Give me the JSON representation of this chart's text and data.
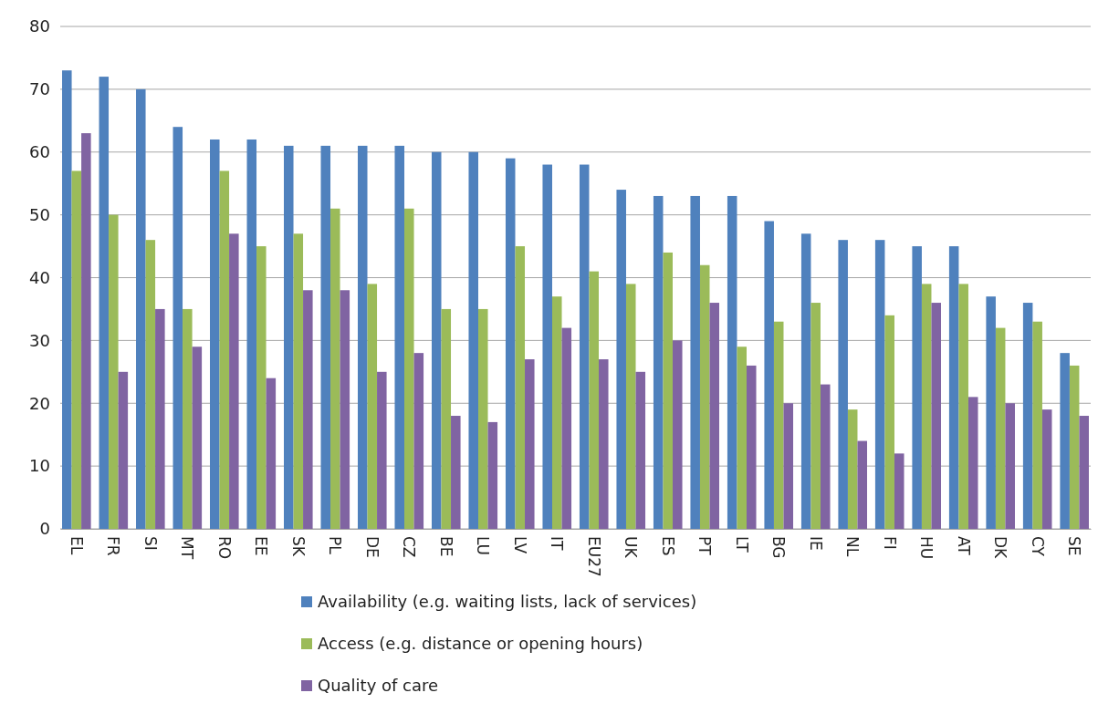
{
  "chart_data": {
    "type": "bar",
    "categories": [
      "EL",
      "FR",
      "SI",
      "MT",
      "RO",
      "EE",
      "SK",
      "PL",
      "DE",
      "CZ",
      "BE",
      "LU",
      "LV",
      "IT",
      "EU27",
      "UK",
      "ES",
      "PT",
      "LT",
      "BG",
      "IE",
      "NL",
      "FI",
      "HU",
      "AT",
      "DK",
      "CY",
      "SE"
    ],
    "series": [
      {
        "name": "Availability (e.g. waiting lists, lack of services)",
        "color": "#4f81bd",
        "values": [
          73,
          72,
          70,
          64,
          62,
          62,
          61,
          61,
          61,
          61,
          60,
          60,
          59,
          58,
          58,
          54,
          53,
          53,
          53,
          49,
          47,
          46,
          46,
          45,
          45,
          37,
          36,
          28
        ]
      },
      {
        "name": "Access (e.g. distance or opening hours)",
        "color": "#9bbb59",
        "values": [
          57,
          50,
          46,
          35,
          57,
          45,
          47,
          51,
          39,
          51,
          35,
          35,
          45,
          37,
          41,
          39,
          44,
          42,
          29,
          33,
          36,
          19,
          34,
          39,
          39,
          32,
          33,
          26
        ]
      },
      {
        "name": "Quality of care",
        "color": "#8064a2",
        "values": [
          63,
          25,
          35,
          29,
          47,
          24,
          38,
          38,
          25,
          28,
          18,
          17,
          27,
          32,
          27,
          25,
          30,
          36,
          26,
          20,
          23,
          14,
          12,
          36,
          21,
          20,
          19,
          18
        ]
      }
    ],
    "ylim": [
      0,
      80
    ],
    "yticks": [
      0,
      10,
      20,
      30,
      40,
      50,
      60,
      70,
      80
    ],
    "grid": "y",
    "legend": "bottom"
  }
}
